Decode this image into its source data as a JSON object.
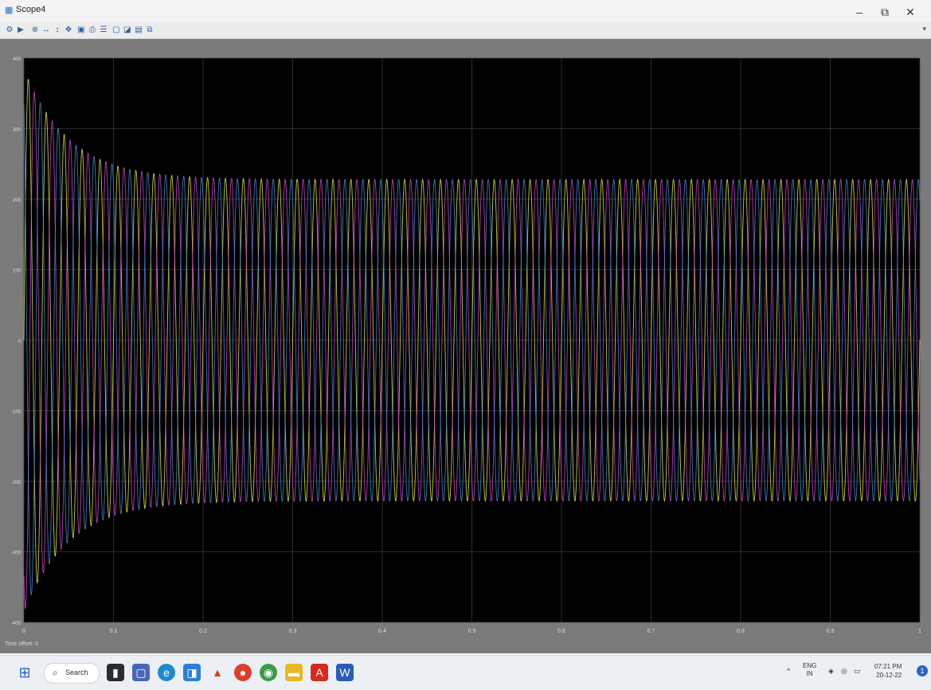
{
  "window": {
    "title": "Scope4",
    "minimize": "–",
    "restore": "⧉",
    "close": "✕"
  },
  "toolbar": {
    "icons": [
      "settings-icon",
      "run-icon",
      "zoom-in-icon",
      "zoom-x-icon",
      "zoom-y-icon",
      "pan-icon",
      "autoscale-icon",
      "print-icon",
      "params-icon",
      "cursor-icon",
      "style-icon",
      "save-icon",
      "copy-icon",
      "layout-icon"
    ],
    "more": "▾"
  },
  "status": {
    "text": "Time offset:  0"
  },
  "chart_data": {
    "type": "line",
    "xlim": [
      0,
      1
    ],
    "ylim": [
      -400,
      400
    ],
    "x_ticks": [
      "0",
      "0.1",
      "0.2",
      "0.3",
      "0.4",
      "0.5",
      "0.6",
      "0.7",
      "0.8",
      "0.9",
      "1"
    ],
    "y_ticks": [
      "400",
      "300",
      "200",
      "100",
      "0",
      "-100",
      "-200",
      "-300",
      "-400"
    ],
    "grid": true,
    "background": "#000000",
    "frequency_hz": 50,
    "steady_amplitude": 228,
    "initial_peak": 385,
    "series": [
      {
        "phase_deg": 0,
        "color": "#e8e85a"
      },
      {
        "phase_deg": -120,
        "color": "#d04ad0"
      },
      {
        "phase_deg": 120,
        "color": "#4a8ad0"
      }
    ]
  },
  "taskbar": {
    "search_label": "Search",
    "apps": [
      "start-icon",
      "search-icon",
      "task-view-icon",
      "teams-icon",
      "edge-icon",
      "store-icon",
      "matlab-icon",
      "app-icon",
      "chrome-icon",
      "file-explorer-icon",
      "acrobat-icon",
      "word-icon"
    ],
    "language": "ENG",
    "region": "IN",
    "time": "07:21 PM",
    "date": "20-12-22",
    "notification_count": "1"
  }
}
